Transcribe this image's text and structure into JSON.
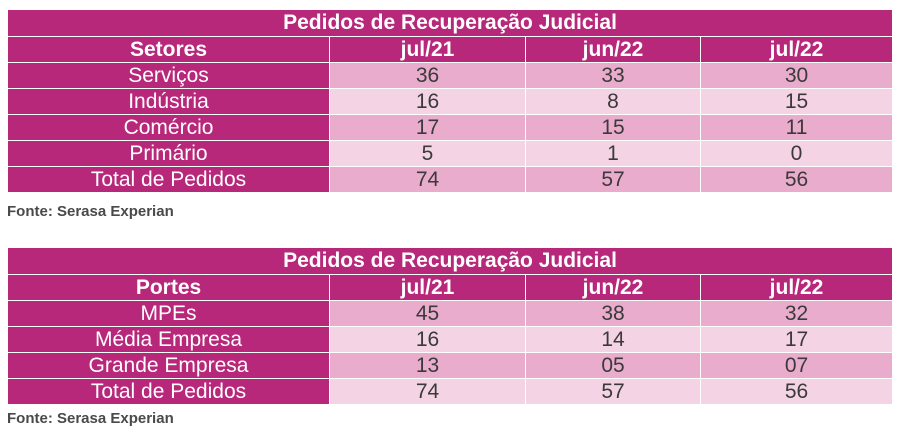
{
  "table1": {
    "title": "Pedidos de Recuperação Judicial",
    "headers": [
      "Setores",
      "jul/21",
      "jun/22",
      "jul/22"
    ],
    "rows": [
      [
        "Serviços",
        "36",
        "33",
        "30"
      ],
      [
        "Indústria",
        "16",
        "8",
        "15"
      ],
      [
        "Comércio",
        "17",
        "15",
        "11"
      ],
      [
        "Primário",
        "5",
        "1",
        "0"
      ],
      [
        "Total de Pedidos",
        "74",
        "57",
        "56"
      ]
    ],
    "source": "Fonte: Serasa Experian"
  },
  "table2": {
    "title": "Pedidos de Recuperação Judicial",
    "headers": [
      "Portes",
      "jul/21",
      "jun/22",
      "jul/22"
    ],
    "rows": [
      [
        "MPEs",
        "45",
        "38",
        "32"
      ],
      [
        "Média Empresa",
        "16",
        "14",
        "17"
      ],
      [
        "Grande Empresa",
        "13",
        "05",
        "07"
      ],
      [
        "Total de Pedidos",
        "74",
        "57",
        "56"
      ]
    ],
    "source": "Fonte: Serasa Experian"
  },
  "colors": {
    "header_bg": "#b8287a",
    "row_dark": "#eaaccd",
    "row_light": "#f4d3e4"
  }
}
